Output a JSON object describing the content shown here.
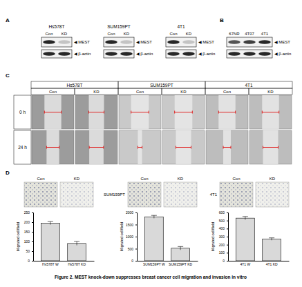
{
  "figure": {
    "panel_a": {
      "letter": "A",
      "blots": [
        {
          "cell_line": "Hs578T",
          "lanes": [
            "Con",
            "KD"
          ],
          "bands": [
            "◀ MEST",
            "◀ β-actin"
          ]
        },
        {
          "cell_line": "SUM159PT",
          "lanes": [
            "Con",
            "KD"
          ],
          "bands": [
            "◀ MEST",
            "◀ β-actin"
          ]
        },
        {
          "cell_line": "4T1",
          "lanes": [
            "Con",
            "KD"
          ],
          "bands": [
            "◀ MEST",
            "◀ β-actin"
          ]
        }
      ]
    },
    "panel_b": {
      "letter": "B",
      "lanes": [
        "67NR",
        "4T07",
        "4T1"
      ],
      "bands": [
        "◀ MEST",
        "◀ β-actin"
      ]
    },
    "panel_c": {
      "letter": "C",
      "cell_lines": [
        "Hs578T",
        "SUM159PT",
        "4T1"
      ],
      "lanes": [
        "Con",
        "KD"
      ],
      "times": [
        "0 h",
        "24 h"
      ]
    },
    "panel_d": {
      "letter": "D",
      "groups": [
        {
          "lanes": [
            "Con",
            "KD"
          ]
        },
        {
          "label": "SUM159PT",
          "lanes": [
            "Con",
            "KD"
          ]
        },
        {
          "label": "4T1",
          "lanes": [
            "Con",
            "KD"
          ]
        }
      ]
    },
    "caption": "Figure 2. MEST knock-down suppresses breast cancer cell migration and invasion in vitro"
  },
  "chart_data": [
    {
      "type": "bar",
      "y_label": "Migrated cell/field",
      "categories": [
        "Hs578T W",
        "Hs578T KD"
      ],
      "values": [
        195,
        90
      ],
      "errors": [
        8,
        10
      ],
      "color": "#d9d9d9",
      "ylim": [
        0,
        250
      ],
      "yticks": [
        0,
        50,
        100,
        150,
        200,
        250
      ],
      "grid": false
    },
    {
      "type": "bar",
      "y_label": "Migrated cell/field",
      "categories": [
        "SUM159PT W",
        "SUM159PT KD"
      ],
      "values": [
        1820,
        520
      ],
      "errors": [
        60,
        70
      ],
      "color": "#d9d9d9",
      "ylim": [
        0,
        2000
      ],
      "yticks": [
        0,
        500,
        1000,
        1500,
        2000
      ],
      "grid": false
    },
    {
      "type": "bar",
      "y_label": "Migrated cell/field",
      "categories": [
        "4T1 W",
        "4T1 KD"
      ],
      "values": [
        530,
        270
      ],
      "errors": [
        20,
        15
      ],
      "color": "#d9d9d9",
      "ylim": [
        0,
        600
      ],
      "yticks": [
        0,
        100,
        200,
        300,
        400,
        500,
        600
      ],
      "grid": false
    }
  ]
}
